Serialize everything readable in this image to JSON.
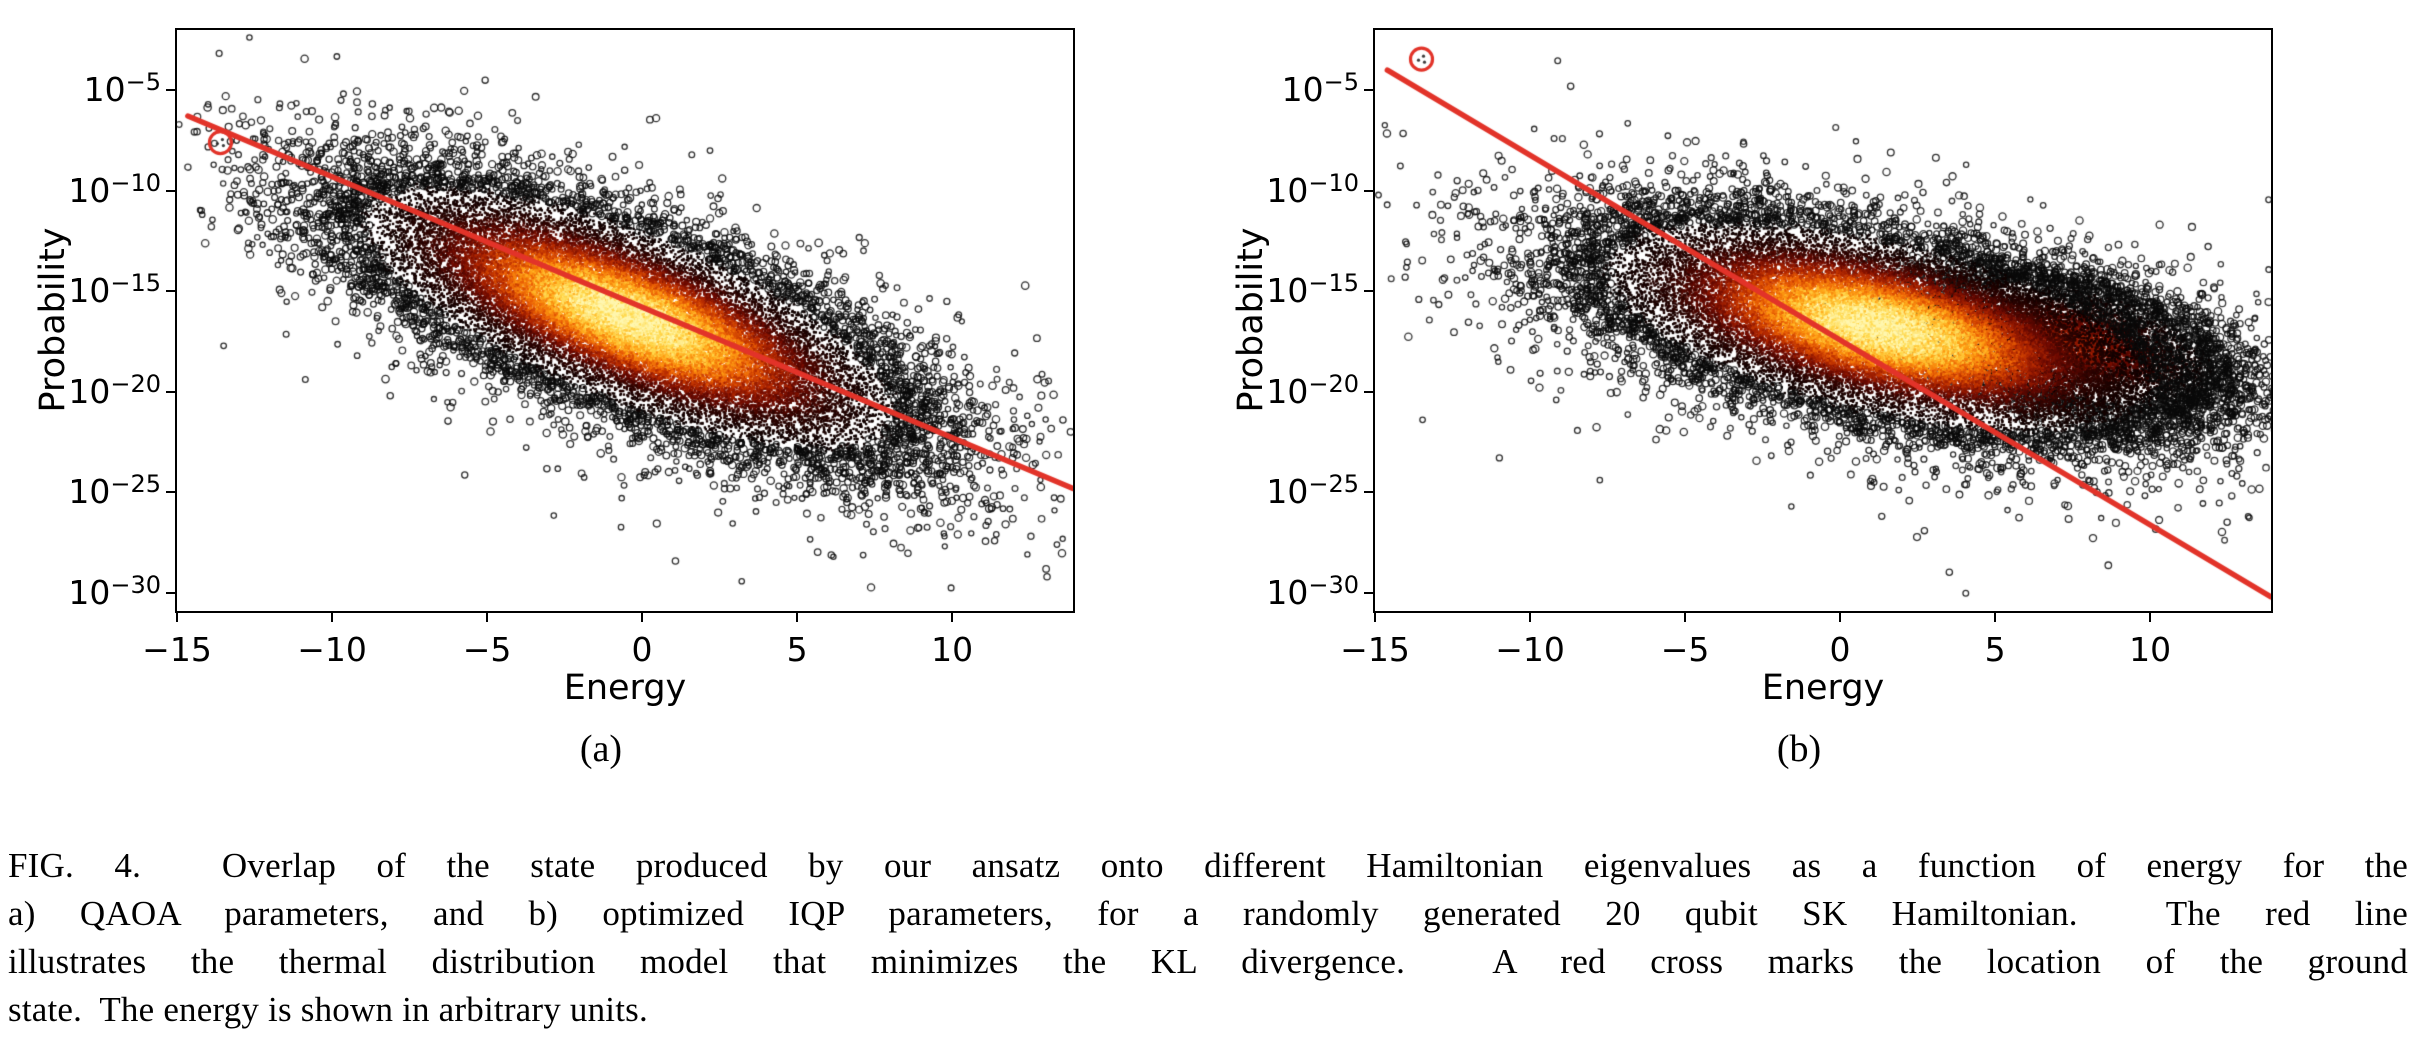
{
  "colors": {
    "accent_red": "#e23329",
    "ink": "#000000",
    "background": "#ffffff",
    "density_colormap": [
      "#000000",
      "#3c0500",
      "#8c1500",
      "#d84b00",
      "#ff9500",
      "#ffd84a",
      "#fff7b0"
    ]
  },
  "caption": {
    "lines": [
      "FIG. 4.  Overlap of the state produced by our ansatz onto different Hamiltonian eigenvalues as a function of energy for the",
      "a) QAOA parameters, and b) optimized IQP parameters, for a randomly generated 20 qubit SK Hamiltonian.  The red line",
      "illustrates the thermal distribution model that minimizes the KL divergence.  A red cross marks the location of the ground",
      "state.  The energy is shown in arbitrary units."
    ]
  },
  "chart_data": [
    {
      "id": "a",
      "type": "scatter",
      "subfig_label": "(a)",
      "xlabel": "Energy",
      "ylabel": "Probability",
      "x_ticks": [
        -15,
        -10,
        -5,
        0,
        5,
        10
      ],
      "y_tick_exponents": [
        -5,
        -10,
        -15,
        -20,
        -25,
        -30
      ],
      "xlim": [
        -15,
        13.9
      ],
      "ylim_exponents": [
        -30.9,
        -2
      ],
      "density_cloud": {
        "center_x": -0.4,
        "center_y_exponent": -16.3,
        "axis_slope_dec_per_unit": -0.55,
        "sigma_x": 3.9,
        "sigma_perp_dec": 2.05
      },
      "fit_line": {
        "x1": -14.65,
        "y1_exponent": -6.28,
        "x2": 13.9,
        "y2_exponent": -24.8
      },
      "ground_state_marker": {
        "x": -13.6,
        "y_exponent": -7.6
      }
    },
    {
      "id": "b",
      "type": "scatter",
      "subfig_label": "(b)",
      "xlabel": "Energy",
      "ylabel": "Probability",
      "x_ticks": [
        -15,
        -10,
        -5,
        0,
        5,
        10
      ],
      "y_tick_exponents": [
        -5,
        -10,
        -15,
        -20,
        -25,
        -30
      ],
      "xlim": [
        -15,
        13.9
      ],
      "ylim_exponents": [
        -30.9,
        -2
      ],
      "density_cloud": {
        "center_x": 1.3,
        "center_y_exponent": -16.8,
        "axis_slope_dec_per_unit": -0.32,
        "sigma_x": 4.0,
        "sigma_perp_dec": 2.0
      },
      "secondary_lobe": {
        "center_x": 7.5,
        "center_y_exponent": -17.6,
        "axis_slope_dec_per_unit": -0.3,
        "sigma_x": 2.4,
        "sigma_perp_dec": 1.5
      },
      "fit_line": {
        "x1": -14.6,
        "y1_exponent": -4.0,
        "x2": 13.9,
        "y2_exponent": -30.2
      },
      "ground_state_marker": {
        "x": -13.5,
        "y_exponent": -3.45
      }
    }
  ]
}
